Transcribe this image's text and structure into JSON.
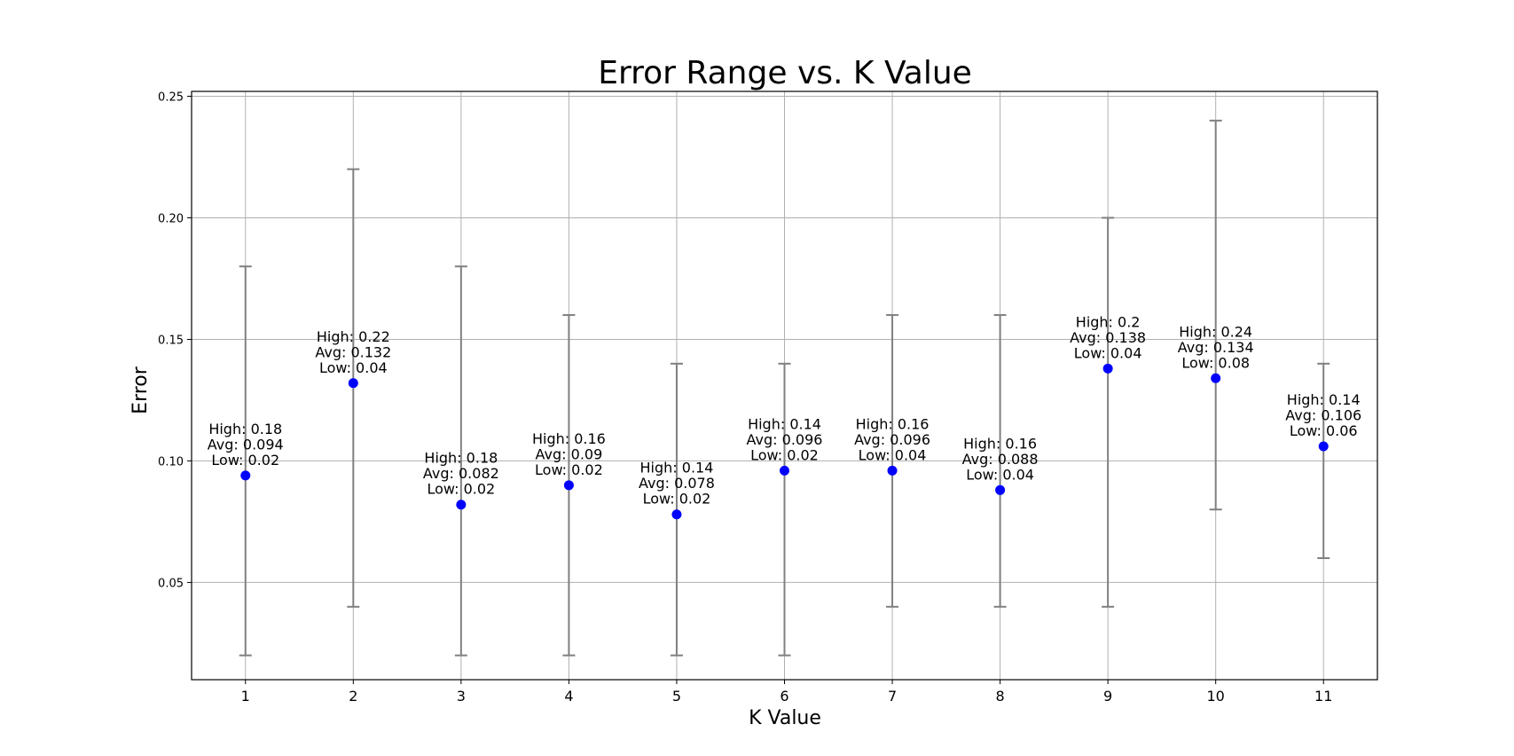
{
  "chart_data": {
    "type": "scatter",
    "title": "Error Range vs. K Value",
    "xlabel": "K Value",
    "ylabel": "Error",
    "grid": true,
    "legend": null,
    "xlim": [
      0.5,
      11.5
    ],
    "ylim": [
      0.01,
      0.252
    ],
    "xticks": [
      1,
      2,
      3,
      4,
      5,
      6,
      7,
      8,
      9,
      10,
      11
    ],
    "yticks": [
      {
        "value": 0.05,
        "label": "0.05"
      },
      {
        "value": 0.1,
        "label": "0.10"
      },
      {
        "value": 0.15,
        "label": "0.15"
      },
      {
        "value": 0.2,
        "label": "0.20"
      },
      {
        "value": 0.25,
        "label": "0.25"
      }
    ],
    "colors": {
      "point": "#0000ff",
      "errorbar": "#808080",
      "grid": "#b0b0b0"
    },
    "points": [
      {
        "x": 1,
        "avg": 0.094,
        "high": 0.18,
        "low": 0.02,
        "label_lines": [
          "High: 0.18",
          "Avg: 0.094",
          "Low: 0.02"
        ]
      },
      {
        "x": 2,
        "avg": 0.132,
        "high": 0.22,
        "low": 0.04,
        "label_lines": [
          "High: 0.22",
          "Avg: 0.132",
          "Low: 0.04"
        ]
      },
      {
        "x": 3,
        "avg": 0.082,
        "high": 0.18,
        "low": 0.02,
        "label_lines": [
          "High: 0.18",
          "Avg: 0.082",
          "Low: 0.02"
        ]
      },
      {
        "x": 4,
        "avg": 0.09,
        "high": 0.16,
        "low": 0.02,
        "label_lines": [
          "High: 0.16",
          "Avg: 0.09",
          "Low: 0.02"
        ]
      },
      {
        "x": 5,
        "avg": 0.078,
        "high": 0.14,
        "low": 0.02,
        "label_lines": [
          "High: 0.14",
          "Avg: 0.078",
          "Low: 0.02"
        ]
      },
      {
        "x": 6,
        "avg": 0.096,
        "high": 0.14,
        "low": 0.02,
        "label_lines": [
          "High: 0.14",
          "Avg: 0.096",
          "Low: 0.02"
        ]
      },
      {
        "x": 7,
        "avg": 0.096,
        "high": 0.16,
        "low": 0.04,
        "label_lines": [
          "High: 0.16",
          "Avg: 0.096",
          "Low: 0.04"
        ]
      },
      {
        "x": 8,
        "avg": 0.088,
        "high": 0.16,
        "low": 0.04,
        "label_lines": [
          "High: 0.16",
          "Avg: 0.088",
          "Low: 0.04"
        ]
      },
      {
        "x": 9,
        "avg": 0.138,
        "high": 0.2,
        "low": 0.04,
        "label_lines": [
          "High: 0.2",
          "Avg: 0.138",
          "Low: 0.04"
        ]
      },
      {
        "x": 10,
        "avg": 0.134,
        "high": 0.24,
        "low": 0.08,
        "label_lines": [
          "High: 0.24",
          "Avg: 0.134",
          "Low: 0.08"
        ]
      },
      {
        "x": 11,
        "avg": 0.106,
        "high": 0.14,
        "low": 0.06,
        "label_lines": [
          "High: 0.14",
          "Avg: 0.106",
          "Low: 0.06"
        ]
      }
    ]
  }
}
